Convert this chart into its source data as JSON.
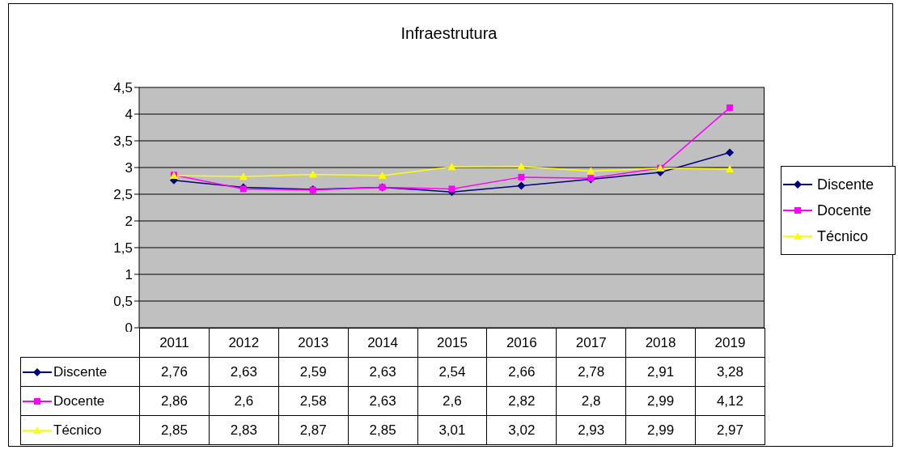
{
  "chart_data": {
    "type": "line",
    "title": "Infraestrutura",
    "categories": [
      "2011",
      "2012",
      "2013",
      "2014",
      "2015",
      "2016",
      "2017",
      "2018",
      "2019"
    ],
    "series": [
      {
        "name": "Discente",
        "color": "#000080",
        "marker": "diamond",
        "values": [
          2.76,
          2.63,
          2.59,
          2.63,
          2.54,
          2.66,
          2.78,
          2.91,
          3.28
        ],
        "value_labels": [
          "2,76",
          "2,63",
          "2,59",
          "2,63",
          "2,54",
          "2,66",
          "2,78",
          "2,91",
          "3,28"
        ]
      },
      {
        "name": "Docente",
        "color": "#ff00ff",
        "marker": "square",
        "values": [
          2.86,
          2.6,
          2.58,
          2.63,
          2.6,
          2.82,
          2.8,
          2.99,
          4.12
        ],
        "value_labels": [
          "2,86",
          "2,6",
          "2,58",
          "2,63",
          "2,6",
          "2,82",
          "2,8",
          "2,99",
          "4,12"
        ]
      },
      {
        "name": "Técnico",
        "color": "#ffff00",
        "marker": "triangle",
        "values": [
          2.85,
          2.83,
          2.87,
          2.85,
          3.01,
          3.02,
          2.93,
          2.99,
          2.97
        ],
        "value_labels": [
          "2,85",
          "2,83",
          "2,87",
          "2,85",
          "3,01",
          "3,02",
          "2,93",
          "2,99",
          "2,97"
        ]
      }
    ],
    "ylim": [
      0,
      4.5
    ],
    "yticks": [
      0,
      {
        "value": 0.5,
        "label": "0,5"
      },
      1,
      {
        "value": 1.5,
        "label": "1,5"
      },
      2,
      {
        "value": 2.5,
        "label": "2,5"
      },
      3,
      {
        "value": 3.5,
        "label": "3,5"
      },
      4,
      {
        "value": 4.5,
        "label": "4,5"
      }
    ],
    "grid": "y",
    "legend": "right"
  }
}
